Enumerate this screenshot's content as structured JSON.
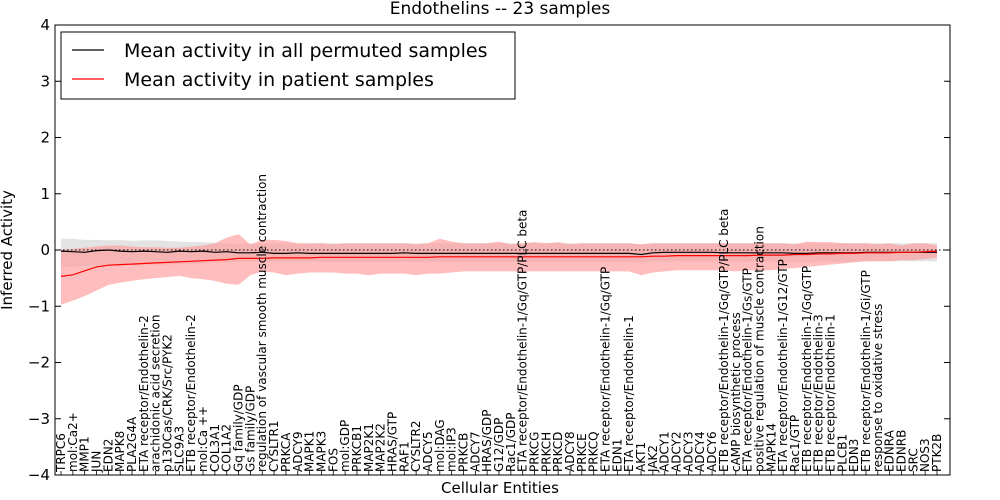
{
  "chart_data": {
    "type": "line",
    "title": "Endothelins -- 23 samples",
    "xlabel": "Cellular Entities",
    "ylabel": "Inferred Activity",
    "ylim": [
      -4,
      4
    ],
    "yticks": [
      -4,
      -3,
      -2,
      -1,
      0,
      1,
      2,
      3,
      4
    ],
    "grid": false,
    "legend_position": "top-left",
    "reference_line_y": 0,
    "categories": [
      "TRPC6",
      "mol:Ca2+",
      "MMP1",
      "JUN",
      "EDN2",
      "MAPK8",
      "PLA2G4A",
      "ETA receptor/Endothelin-2",
      "arachidonic acid secretion",
      "p130Cas/CRK/Src/PYK2",
      "SLC9A3",
      "ETB receptor/Endothelin-2",
      "mol:Ca ++",
      "COL3A1",
      "COL1A2",
      "Gq family/GDP",
      "Gs family/GDP",
      "regulation of vascular smooth muscle contraction",
      "CYSLTR1",
      "PRKCA",
      "ADCY9",
      "MAPK1",
      "MAPK3",
      "FOS",
      "mol:GDP",
      "PRKCB1",
      "MAP2K1",
      "MAP2K2",
      "HRAS/GTP",
      "RAF1",
      "CYSLTR2",
      "ADCY5",
      "mol:DAG",
      "mol:IP3",
      "PRKCB",
      "ADCY7",
      "HRAS/GDP",
      "G12/GDP",
      "Rac1/GDP",
      "ETA receptor/Endothelin-1/Gq/GTP/PLC beta",
      "PRKCG",
      "PRKCH",
      "PRKCD",
      "ADCY8",
      "PRKCE",
      "PRKCQ",
      "ETA receptor/Endothelin-1/Gq/GTP",
      "EDN1",
      "ETA receptor/Endothelin-1",
      "AKT1",
      "JAK2",
      "ADCY1",
      "ADCY2",
      "ADCY3",
      "ADCY4",
      "ADCY6",
      "ETB receptor/Endothelin-1/Gq/GTP/PLC beta",
      "cAMP biosynthetic process",
      "ETA receptor/Endothelin-1/Gs/GTP",
      "positive regulation of muscle contraction",
      "MAPK14",
      "ETA receptor/Endothelin-1/G12/GTP",
      "Rac1/GTP",
      "ETB receptor/Endothelin-1/Gq/GTP",
      "ETB receptor/Endothelin-3",
      "ETB receptor/Endothelin-1",
      "PLCB1",
      "EDN3",
      "ETB receptor/Endothelin-1/Gi/GTP",
      "response to oxidative stress",
      "EDNRA",
      "EDNRB",
      "SRC",
      "NOS3",
      "PTK2B"
    ],
    "series": [
      {
        "name": "Mean activity in all permuted samples",
        "color": "#000000",
        "band_color": "#cccccc",
        "mean": [
          -0.02,
          -0.03,
          -0.04,
          -0.01,
          0.0,
          -0.02,
          -0.03,
          -0.02,
          -0.03,
          -0.04,
          -0.02,
          -0.03,
          -0.02,
          -0.04,
          -0.03,
          -0.05,
          -0.05,
          -0.04,
          -0.06,
          -0.06,
          -0.05,
          -0.06,
          -0.06,
          -0.06,
          -0.06,
          -0.06,
          -0.06,
          -0.06,
          -0.06,
          -0.05,
          -0.06,
          -0.06,
          -0.06,
          -0.06,
          -0.06,
          -0.06,
          -0.06,
          -0.06,
          -0.06,
          -0.06,
          -0.06,
          -0.06,
          -0.06,
          -0.06,
          -0.06,
          -0.06,
          -0.06,
          -0.06,
          -0.06,
          -0.08,
          -0.05,
          -0.04,
          -0.04,
          -0.04,
          -0.04,
          -0.04,
          -0.05,
          -0.05,
          -0.05,
          -0.05,
          -0.05,
          -0.05,
          -0.06,
          -0.06,
          -0.05,
          -0.05,
          -0.05,
          -0.05,
          -0.04,
          -0.04,
          -0.04,
          -0.04,
          -0.04,
          -0.04,
          -0.04
        ],
        "upper": [
          0.2,
          0.2,
          0.18,
          0.18,
          0.17,
          0.18,
          0.16,
          0.17,
          0.17,
          0.16,
          0.15,
          0.14,
          0.14,
          0.13,
          0.12,
          0.11,
          0.11,
          0.11,
          0.12,
          0.12,
          0.11,
          0.11,
          0.12,
          0.12,
          0.12,
          0.12,
          0.12,
          0.12,
          0.12,
          0.12,
          0.12,
          0.12,
          0.12,
          0.12,
          0.12,
          0.12,
          0.12,
          0.12,
          0.12,
          0.12,
          0.12,
          0.12,
          0.12,
          0.12,
          0.12,
          0.12,
          0.12,
          0.12,
          0.12,
          0.1,
          0.12,
          0.12,
          0.12,
          0.12,
          0.12,
          0.12,
          0.12,
          0.12,
          0.12,
          0.12,
          0.12,
          0.12,
          0.12,
          0.12,
          0.12,
          0.12,
          0.12,
          0.12,
          0.12,
          0.12,
          0.12,
          0.12,
          0.12,
          0.12,
          0.12
        ],
        "lower": [
          -0.3,
          -0.3,
          -0.28,
          -0.27,
          -0.27,
          -0.27,
          -0.26,
          -0.26,
          -0.26,
          -0.26,
          -0.25,
          -0.25,
          -0.24,
          -0.23,
          -0.22,
          -0.21,
          -0.21,
          -0.21,
          -0.21,
          -0.21,
          -0.2,
          -0.21,
          -0.21,
          -0.21,
          -0.21,
          -0.21,
          -0.21,
          -0.21,
          -0.21,
          -0.2,
          -0.21,
          -0.21,
          -0.21,
          -0.21,
          -0.21,
          -0.21,
          -0.21,
          -0.21,
          -0.21,
          -0.21,
          -0.21,
          -0.21,
          -0.21,
          -0.21,
          -0.21,
          -0.21,
          -0.21,
          -0.21,
          -0.21,
          -0.24,
          -0.2,
          -0.2,
          -0.2,
          -0.2,
          -0.2,
          -0.2,
          -0.21,
          -0.21,
          -0.21,
          -0.21,
          -0.21,
          -0.21,
          -0.22,
          -0.22,
          -0.21,
          -0.21,
          -0.21,
          -0.21,
          -0.2,
          -0.2,
          -0.2,
          -0.2,
          -0.2,
          -0.2,
          -0.2
        ]
      },
      {
        "name": "Mean activity in patient samples",
        "color": "#ff0000",
        "band_color": "#ff9999",
        "mean": [
          -0.47,
          -0.44,
          -0.37,
          -0.3,
          -0.27,
          -0.26,
          -0.25,
          -0.24,
          -0.23,
          -0.22,
          -0.21,
          -0.2,
          -0.19,
          -0.18,
          -0.17,
          -0.15,
          -0.15,
          -0.15,
          -0.14,
          -0.14,
          -0.14,
          -0.14,
          -0.13,
          -0.13,
          -0.13,
          -0.13,
          -0.13,
          -0.13,
          -0.13,
          -0.13,
          -0.13,
          -0.13,
          -0.12,
          -0.12,
          -0.12,
          -0.12,
          -0.12,
          -0.12,
          -0.12,
          -0.12,
          -0.12,
          -0.12,
          -0.12,
          -0.12,
          -0.12,
          -0.12,
          -0.12,
          -0.12,
          -0.12,
          -0.12,
          -0.11,
          -0.11,
          -0.1,
          -0.1,
          -0.1,
          -0.1,
          -0.1,
          -0.1,
          -0.1,
          -0.09,
          -0.09,
          -0.09,
          -0.08,
          -0.08,
          -0.07,
          -0.07,
          -0.06,
          -0.06,
          -0.05,
          -0.05,
          -0.05,
          -0.04,
          -0.04,
          -0.03,
          -0.02
        ],
        "upper": [
          0.0,
          0.02,
          0.04,
          0.06,
          0.08,
          0.08,
          0.06,
          0.05,
          0.05,
          0.04,
          0.04,
          0.06,
          0.08,
          0.12,
          0.22,
          0.28,
          0.1,
          0.18,
          0.18,
          0.16,
          0.12,
          0.12,
          0.12,
          0.1,
          0.12,
          0.12,
          0.12,
          0.12,
          0.12,
          0.12,
          0.1,
          0.12,
          0.2,
          0.15,
          0.12,
          0.12,
          0.12,
          0.15,
          0.1,
          0.12,
          0.14,
          0.12,
          0.14,
          0.1,
          0.12,
          0.12,
          0.12,
          0.12,
          0.12,
          0.1,
          0.12,
          0.12,
          0.12,
          0.12,
          0.12,
          0.12,
          0.12,
          0.12,
          0.12,
          0.12,
          0.12,
          0.12,
          0.1,
          0.15,
          0.14,
          0.14,
          0.12,
          0.12,
          0.12,
          0.1,
          0.12,
          0.08,
          0.12,
          0.12,
          0.08
        ],
        "lower": [
          -0.97,
          -0.9,
          -0.82,
          -0.72,
          -0.62,
          -0.58,
          -0.55,
          -0.52,
          -0.5,
          -0.48,
          -0.46,
          -0.5,
          -0.52,
          -0.55,
          -0.6,
          -0.62,
          -0.45,
          -0.38,
          -0.4,
          -0.45,
          -0.42,
          -0.4,
          -0.4,
          -0.4,
          -0.42,
          -0.42,
          -0.45,
          -0.42,
          -0.42,
          -0.42,
          -0.45,
          -0.42,
          -0.42,
          -0.4,
          -0.38,
          -0.38,
          -0.38,
          -0.38,
          -0.38,
          -0.38,
          -0.38,
          -0.38,
          -0.38,
          -0.38,
          -0.38,
          -0.38,
          -0.38,
          -0.38,
          -0.38,
          -0.45,
          -0.4,
          -0.38,
          -0.36,
          -0.36,
          -0.36,
          -0.36,
          -0.36,
          -0.38,
          -0.36,
          -0.36,
          -0.36,
          -0.34,
          -0.32,
          -0.3,
          -0.28,
          -0.26,
          -0.24,
          -0.22,
          -0.2,
          -0.2,
          -0.2,
          -0.18,
          -0.18,
          -0.16,
          -0.14
        ]
      }
    ]
  }
}
